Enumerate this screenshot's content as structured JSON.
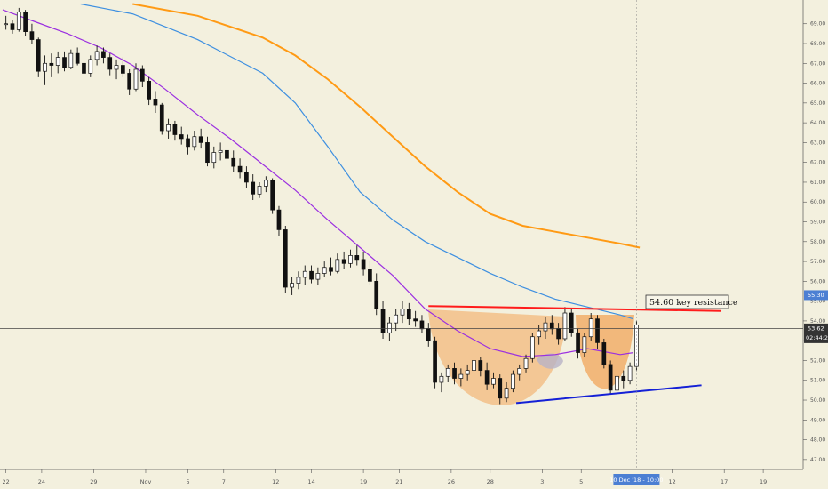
{
  "chart_data": {
    "type": "candlestick",
    "ylim": [
      46.5,
      70.2
    ],
    "xlim": [
      0,
      123
    ],
    "grid": false,
    "y_ticks": [
      "47.00",
      "48.00",
      "49.00",
      "50.00",
      "51.00",
      "52.00",
      "53.00",
      "54.00",
      "55.00",
      "56.00",
      "57.00",
      "58.00",
      "59.00",
      "60.00",
      "61.00",
      "62.00",
      "63.00",
      "64.00",
      "65.00",
      "66.00",
      "67.00",
      "68.00",
      "69.00"
    ],
    "x_ticks": [
      {
        "label": "22",
        "x": 0.5
      },
      {
        "label": "24",
        "x": 6
      },
      {
        "label": "29",
        "x": 14
      },
      {
        "label": "Nov",
        "x": 22
      },
      {
        "label": "5",
        "x": 28.5
      },
      {
        "label": "7",
        "x": 34
      },
      {
        "label": "12",
        "x": 42
      },
      {
        "label": "14",
        "x": 47.5
      },
      {
        "label": "19",
        "x": 55.5
      },
      {
        "label": "21",
        "x": 61
      },
      {
        "label": "26",
        "x": 69
      },
      {
        "label": "28",
        "x": 75
      },
      {
        "label": "3",
        "x": 83
      },
      {
        "label": "5",
        "x": 89
      },
      {
        "label": "12",
        "x": 103
      },
      {
        "label": "17",
        "x": 111
      },
      {
        "label": "19",
        "x": 117
      }
    ],
    "current_price": "53.62",
    "current_price_value": 53.62,
    "countdown": "02:44:2",
    "highlight_price": "55.30",
    "highlight_price_value": 55.3,
    "crosshair_time": "10 Dec '18 - 10:00",
    "crosshair_x": 97.5,
    "annotation": "54.60  key resistance",
    "colors": {
      "up": "#ffffff",
      "down": "#111111",
      "ma_purple": "#9b2fe0",
      "ma_blue": "#3d8fe0",
      "ma_orange": "#ff9a14",
      "resistance": "#ff1b1b",
      "support": "#1420d6",
      "cup_fill": "#f2a55a",
      "tag_blue": "#4c7fd3",
      "tag_dark": "#333333"
    },
    "candles": [
      [
        69.0,
        69.4,
        68.7,
        69.0
      ],
      [
        69.0,
        69.2,
        68.5,
        68.7
      ],
      [
        68.7,
        69.8,
        68.6,
        69.6
      ],
      [
        69.6,
        69.7,
        68.4,
        68.6
      ],
      [
        68.6,
        69.0,
        68.0,
        68.2
      ],
      [
        68.2,
        68.3,
        66.3,
        66.6
      ],
      [
        66.6,
        67.4,
        65.9,
        67.0
      ],
      [
        67.0,
        67.5,
        66.3,
        66.9
      ],
      [
        66.9,
        67.6,
        66.5,
        67.3
      ],
      [
        67.3,
        67.6,
        66.6,
        66.8
      ],
      [
        66.8,
        67.7,
        66.7,
        67.5
      ],
      [
        67.5,
        67.8,
        66.9,
        67.0
      ],
      [
        67.0,
        67.5,
        66.3,
        66.5
      ],
      [
        66.5,
        67.4,
        66.3,
        67.2
      ],
      [
        67.2,
        67.9,
        66.9,
        67.6
      ],
      [
        67.6,
        67.8,
        67.0,
        67.3
      ],
      [
        67.3,
        67.5,
        66.4,
        66.7
      ],
      [
        66.7,
        67.2,
        66.2,
        66.9
      ],
      [
        66.9,
        67.3,
        66.3,
        66.5
      ],
      [
        66.5,
        66.7,
        65.4,
        65.7
      ],
      [
        65.7,
        67.0,
        65.6,
        66.7
      ],
      [
        66.7,
        66.9,
        65.8,
        66.1
      ],
      [
        66.1,
        66.3,
        64.9,
        65.2
      ],
      [
        65.2,
        65.6,
        64.5,
        64.9
      ],
      [
        64.9,
        65.0,
        63.4,
        63.6
      ],
      [
        63.6,
        64.2,
        63.2,
        63.9
      ],
      [
        63.9,
        64.1,
        63.1,
        63.4
      ],
      [
        63.4,
        63.8,
        62.9,
        63.2
      ],
      [
        63.2,
        63.4,
        62.4,
        62.8
      ],
      [
        62.8,
        63.6,
        62.6,
        63.3
      ],
      [
        63.3,
        63.7,
        62.7,
        63.0
      ],
      [
        63.0,
        63.3,
        61.8,
        62.0
      ],
      [
        62.0,
        62.8,
        61.7,
        62.5
      ],
      [
        62.5,
        63.0,
        62.1,
        62.6
      ],
      [
        62.6,
        62.9,
        61.9,
        62.2
      ],
      [
        62.2,
        62.6,
        61.5,
        61.8
      ],
      [
        61.8,
        62.2,
        61.2,
        61.5
      ],
      [
        61.5,
        61.8,
        60.7,
        61.0
      ],
      [
        61.0,
        61.4,
        60.1,
        60.4
      ],
      [
        60.4,
        61.0,
        60.2,
        60.8
      ],
      [
        60.8,
        61.3,
        60.5,
        61.1
      ],
      [
        61.1,
        61.2,
        59.4,
        59.6
      ],
      [
        59.6,
        59.8,
        58.3,
        58.6
      ],
      [
        58.6,
        58.8,
        55.4,
        55.7
      ],
      [
        55.7,
        56.2,
        55.3,
        55.9
      ],
      [
        55.9,
        56.5,
        55.6,
        56.2
      ],
      [
        56.2,
        56.8,
        55.8,
        56.5
      ],
      [
        56.5,
        56.8,
        55.9,
        56.1
      ],
      [
        56.1,
        56.7,
        55.8,
        56.4
      ],
      [
        56.4,
        57.0,
        56.2,
        56.7
      ],
      [
        56.7,
        57.2,
        56.3,
        56.5
      ],
      [
        56.5,
        57.4,
        56.4,
        57.1
      ],
      [
        57.1,
        57.5,
        56.6,
        56.9
      ],
      [
        56.9,
        57.6,
        56.7,
        57.3
      ],
      [
        57.3,
        57.8,
        56.8,
        57.1
      ],
      [
        57.1,
        57.5,
        56.3,
        56.6
      ],
      [
        56.6,
        57.0,
        55.8,
        56.0
      ],
      [
        56.0,
        56.4,
        54.3,
        54.6
      ],
      [
        54.6,
        55.0,
        53.1,
        53.4
      ],
      [
        53.4,
        54.2,
        53.0,
        53.9
      ],
      [
        53.9,
        54.6,
        53.5,
        54.3
      ],
      [
        54.3,
        55.0,
        53.9,
        54.6
      ],
      [
        54.6,
        54.9,
        53.8,
        54.1
      ],
      [
        54.1,
        54.5,
        53.7,
        54.0
      ],
      [
        54.0,
        54.3,
        53.4,
        53.6
      ],
      [
        53.6,
        53.9,
        52.7,
        53.0
      ],
      [
        53.0,
        53.2,
        50.6,
        50.9
      ],
      [
        50.9,
        51.4,
        50.4,
        51.2
      ],
      [
        51.2,
        51.8,
        50.9,
        51.6
      ],
      [
        51.6,
        51.9,
        50.8,
        51.1
      ],
      [
        51.1,
        51.6,
        50.7,
        51.3
      ],
      [
        51.3,
        51.8,
        51.0,
        51.5
      ],
      [
        51.5,
        52.3,
        51.3,
        52.0
      ],
      [
        52.0,
        52.2,
        51.2,
        51.5
      ],
      [
        51.5,
        51.9,
        50.5,
        50.8
      ],
      [
        50.8,
        51.4,
        50.6,
        51.1
      ],
      [
        51.1,
        51.3,
        49.8,
        50.1
      ],
      [
        50.1,
        50.9,
        49.9,
        50.6
      ],
      [
        50.6,
        51.5,
        50.4,
        51.3
      ],
      [
        51.3,
        51.8,
        51.0,
        51.6
      ],
      [
        51.6,
        52.3,
        51.4,
        52.1
      ],
      [
        52.1,
        53.4,
        51.9,
        53.2
      ],
      [
        53.2,
        53.8,
        52.8,
        53.5
      ],
      [
        53.5,
        54.2,
        53.1,
        53.9
      ],
      [
        53.9,
        54.3,
        53.3,
        53.6
      ],
      [
        53.6,
        53.9,
        52.8,
        53.1
      ],
      [
        53.1,
        54.7,
        53.0,
        54.4
      ],
      [
        54.4,
        54.6,
        53.2,
        53.4
      ],
      [
        53.4,
        53.6,
        52.1,
        52.4
      ],
      [
        52.4,
        53.4,
        52.2,
        53.2
      ],
      [
        53.2,
        54.4,
        53.0,
        54.1
      ],
      [
        54.1,
        54.3,
        52.6,
        52.9
      ],
      [
        52.9,
        53.1,
        51.6,
        51.8
      ],
      [
        51.8,
        52.0,
        50.3,
        50.5
      ],
      [
        50.5,
        51.4,
        50.2,
        51.2
      ],
      [
        51.2,
        51.5,
        50.6,
        51.0
      ],
      [
        51.0,
        51.9,
        50.8,
        51.7
      ],
      [
        51.7,
        54.0,
        51.5,
        53.8
      ]
    ],
    "series": [
      {
        "name": "",
        "color": "#9b2fe0",
        "x": [
          0,
          5,
          10,
          15,
          20,
          25,
          30,
          35,
          40,
          45,
          50,
          55,
          60,
          65,
          70,
          75,
          80,
          85,
          90,
          95,
          97
        ],
        "values": [
          69.7,
          69.1,
          68.5,
          67.8,
          66.9,
          65.7,
          64.4,
          63.2,
          61.9,
          60.6,
          59.1,
          57.7,
          56.3,
          54.6,
          53.5,
          52.6,
          52.2,
          52.3,
          52.6,
          52.3,
          52.4
        ]
      },
      {
        "name": "",
        "color": "#3d8fe0",
        "x": [
          12,
          20,
          30,
          40,
          45,
          50,
          55,
          60,
          65,
          70,
          75,
          80,
          85,
          90,
          95,
          97
        ],
        "values": [
          70.0,
          69.5,
          68.2,
          66.5,
          65.0,
          62.8,
          60.5,
          59.1,
          58.0,
          57.2,
          56.4,
          55.7,
          55.1,
          54.7,
          54.3,
          54.1
        ]
      },
      {
        "name": "",
        "color": "#ff9a14",
        "x": [
          20,
          30,
          40,
          45,
          50,
          55,
          60,
          65,
          70,
          75,
          80,
          85,
          90,
          95,
          98
        ],
        "values": [
          70.0,
          69.4,
          68.3,
          67.4,
          66.2,
          64.8,
          63.3,
          61.8,
          60.5,
          59.4,
          58.8,
          58.5,
          58.2,
          57.9,
          57.7
        ]
      }
    ],
    "resistance_line": {
      "x": [
        65.5,
        110.5
      ],
      "y": [
        54.75,
        54.5
      ]
    },
    "support_line": {
      "x": [
        79,
        107.5
      ],
      "y": [
        49.85,
        50.75
      ]
    }
  }
}
